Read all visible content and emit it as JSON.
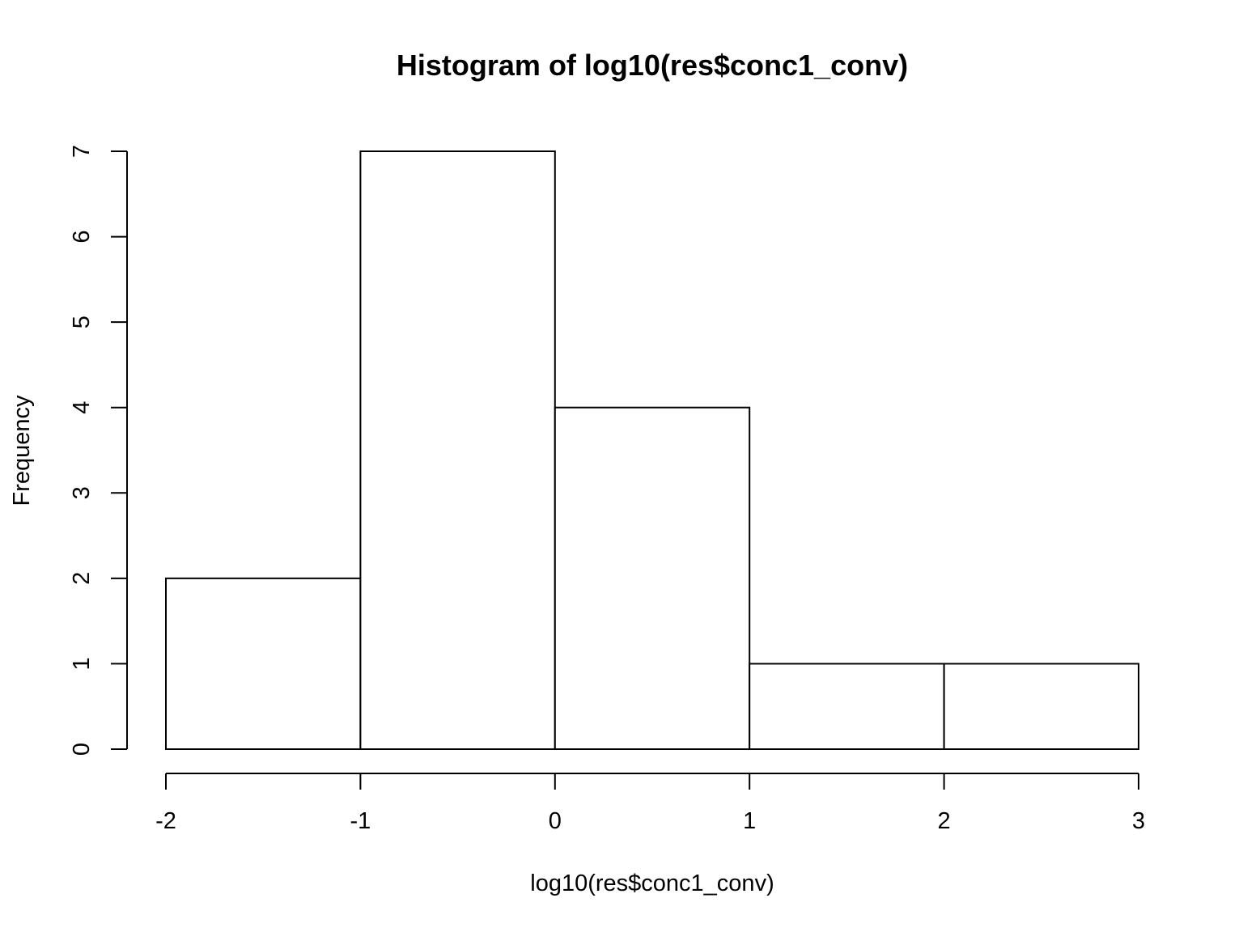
{
  "chart_data": {
    "type": "histogram",
    "title": "Histogram of log10(res$conc1_conv)",
    "xlabel": "log10(res$conc1_conv)",
    "ylabel": "Frequency",
    "bins": [
      {
        "from": -2,
        "to": -1,
        "count": 2
      },
      {
        "from": -1,
        "to": 0,
        "count": 7
      },
      {
        "from": 0,
        "to": 1,
        "count": 4
      },
      {
        "from": 1,
        "to": 2,
        "count": 1
      },
      {
        "from": 2,
        "to": 3,
        "count": 1
      }
    ],
    "xlim": [
      -2,
      3
    ],
    "ylim": [
      0,
      7
    ],
    "xticks": [
      "-2",
      "-1",
      "0",
      "1",
      "2",
      "3"
    ],
    "yticks": [
      "0",
      "1",
      "2",
      "3",
      "4",
      "5",
      "6",
      "7"
    ],
    "grid": false,
    "bar_fill": "#ffffff",
    "bar_stroke": "#000000"
  }
}
